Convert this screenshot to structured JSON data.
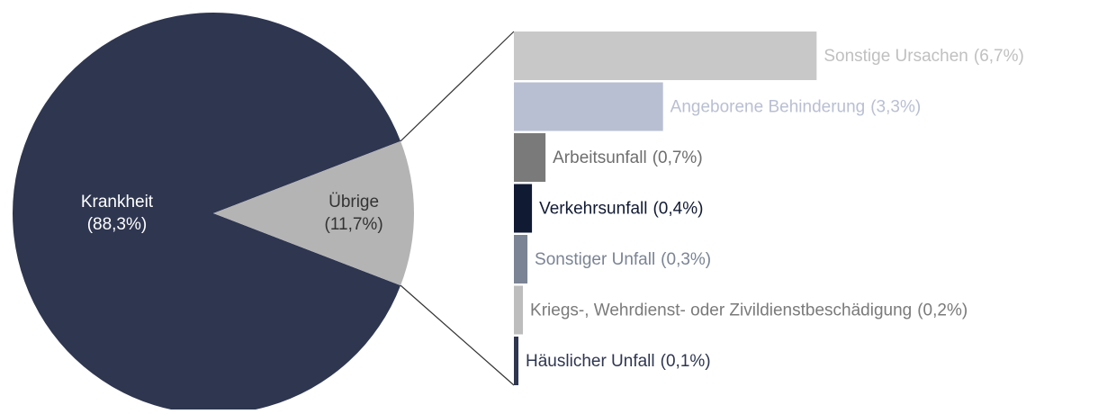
{
  "chart_data": [
    {
      "type": "pie",
      "categories": [
        "Krankheit",
        "Übrige"
      ],
      "values": [
        88.3,
        11.7
      ],
      "value_labels": [
        "(88,3%)",
        "(11,7%)"
      ],
      "colors": [
        "#2e3650",
        "#b4b4b4"
      ],
      "label_colors": [
        "#ffffff",
        "#333333"
      ]
    },
    {
      "type": "hbar",
      "categories": [
        "Sonstige Ursachen",
        "Angeborene Behinderung",
        "Arbeitsunfall",
        "Verkehrsunfall",
        "Sonstiger Unfall",
        "Kriegs-, Wehrdienst- oder Zivildienstbeschädigung",
        "Häuslicher Unfall"
      ],
      "values": [
        6.7,
        3.3,
        0.7,
        0.4,
        0.3,
        0.2,
        0.1
      ],
      "value_labels": [
        "(6,7%)",
        "(3,3%)",
        "(0,7%)",
        "(0,4%)",
        "(0,3%)",
        "(0,2%)",
        "(0,1%)"
      ],
      "colors": [
        "#c8c8c8",
        "#b9bfd2",
        "#7a7a7a",
        "#111a33",
        "#7b8494",
        "#bdbdbd",
        "#2e3650"
      ],
      "label_colors": [
        "#c0c0c0",
        "#b9bfd2",
        "#6e6e6e",
        "#111a33",
        "#7b8494",
        "#7a7a7a",
        "#2e3650"
      ]
    }
  ]
}
